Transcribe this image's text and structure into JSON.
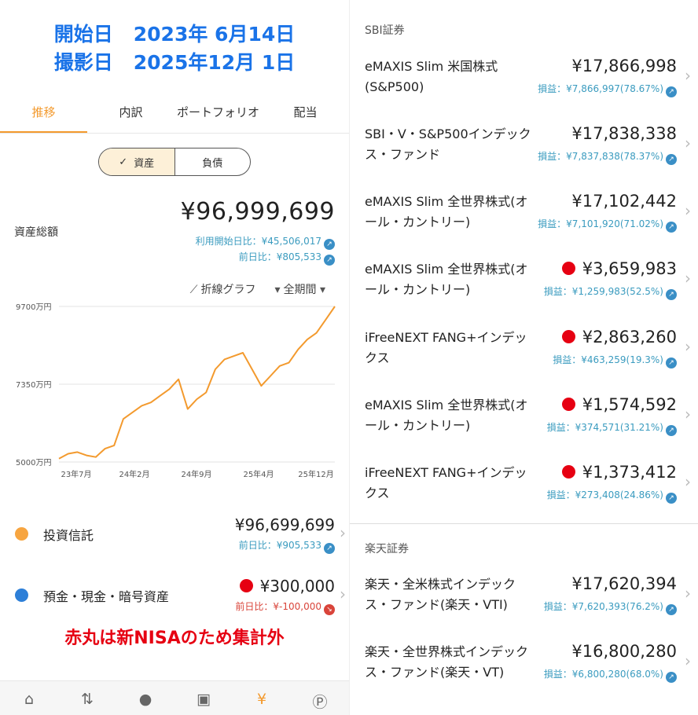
{
  "header": {
    "start_label": "開始日",
    "start_date": "2023年 6月14日",
    "shot_label": "撮影日",
    "shot_date": "2025年12月 1日"
  },
  "tabs": [
    {
      "label": "推移"
    },
    {
      "label": "内訳"
    },
    {
      "label": "ポートフォリオ"
    },
    {
      "label": "配当"
    }
  ],
  "segment": {
    "assets": "資産",
    "liabilities": "負債"
  },
  "summary": {
    "label": "資産総額",
    "value": "¥96,999,699",
    "since_start": "利用開始日比：¥45,506,017",
    "prev_day": "前日比：¥805,533"
  },
  "chart_controls": {
    "type": "折線グラフ",
    "period": "全期間"
  },
  "chart_data": {
    "type": "line",
    "x_ticks": [
      "23年7月",
      "24年2月",
      "24年9月",
      "25年4月",
      "25年12月"
    ],
    "y_ticks": [
      "9700万円",
      "7350万円",
      "5000万円"
    ],
    "ylim": [
      5000,
      9700
    ],
    "series": [
      {
        "color": "#f39a2e",
        "x": [
          "2023-06",
          "2023-07",
          "2023-08",
          "2023-09",
          "2023-10",
          "2023-11",
          "2023-12",
          "2024-01",
          "2024-02",
          "2024-03",
          "2024-04",
          "2024-05",
          "2024-06",
          "2024-07",
          "2024-08",
          "2024-09",
          "2024-10",
          "2024-11",
          "2024-12",
          "2025-01",
          "2025-02",
          "2025-03",
          "2025-04",
          "2025-05",
          "2025-06",
          "2025-07",
          "2025-08",
          "2025-09",
          "2025-10",
          "2025-11",
          "2025-12"
        ],
        "values": [
          5100,
          5250,
          5300,
          5200,
          5150,
          5400,
          5500,
          6300,
          6500,
          6700,
          6800,
          7000,
          7200,
          7500,
          6600,
          6900,
          7100,
          7800,
          8100,
          8200,
          8300,
          7800,
          7300,
          7600,
          7900,
          8000,
          8400,
          8700,
          8900,
          9300,
          9700
        ]
      }
    ]
  },
  "assets": [
    {
      "name": "投資信託",
      "value": "¥96,699,699",
      "sub": "前日比：¥905,533",
      "color": "#f7a540",
      "nisa": false
    },
    {
      "name": "預金・現金・暗号資産",
      "value": "¥300,000",
      "sub": "前日比：¥-100,000",
      "color": "#2d7fd8",
      "nisa": true
    }
  ],
  "note": "赤丸は新NISAのため集計外",
  "bottom_nav": [
    {
      "icon": "home-icon"
    },
    {
      "icon": "transfer-icon"
    },
    {
      "icon": "piggy-bank-icon"
    },
    {
      "icon": "wallet-icon"
    },
    {
      "icon": "money-bag-icon"
    },
    {
      "icon": "points-icon"
    }
  ],
  "sections": [
    {
      "title": "SBI証券",
      "funds": [
        {
          "name": "eMAXIS Slim 米国株式(S&P500)",
          "value": "¥17,866,998",
          "sub": "損益：¥7,866,997(78.67%)",
          "nisa": false
        },
        {
          "name": "SBI・V・S&P500インデックス・ファンド",
          "value": "¥17,838,338",
          "sub": "損益：¥7,837,838(78.37%)",
          "nisa": false
        },
        {
          "name": "eMAXIS Slim 全世界株式(オール・カントリー)",
          "value": "¥17,102,442",
          "sub": "損益：¥7,101,920(71.02%)",
          "nisa": false
        },
        {
          "name": "eMAXIS Slim 全世界株式(オール・カントリー)",
          "value": "¥3,659,983",
          "sub": "損益：¥1,259,983(52.5%)",
          "nisa": true
        },
        {
          "name": "iFreeNEXT FANG+インデックス",
          "value": "¥2,863,260",
          "sub": "損益：¥463,259(19.3%)",
          "nisa": true
        },
        {
          "name": "eMAXIS Slim 全世界株式(オール・カントリー)",
          "value": "¥1,574,592",
          "sub": "損益：¥374,571(31.21%)",
          "nisa": true
        },
        {
          "name": "iFreeNEXT FANG+インデックス",
          "value": "¥1,373,412",
          "sub": "損益：¥273,408(24.86%)",
          "nisa": true
        }
      ]
    },
    {
      "title": "楽天証券",
      "funds": [
        {
          "name": "楽天・全米株式インデックス・ファンド(楽天・VTI)",
          "value": "¥17,620,394",
          "sub": "損益：¥7,620,393(76.2%)",
          "nisa": false
        },
        {
          "name": "楽天・全世界株式インデックス・ファンド(楽天・VT)",
          "value": "¥16,800,280",
          "sub": "損益：¥6,800,280(68.0%)",
          "nisa": false
        }
      ]
    }
  ]
}
